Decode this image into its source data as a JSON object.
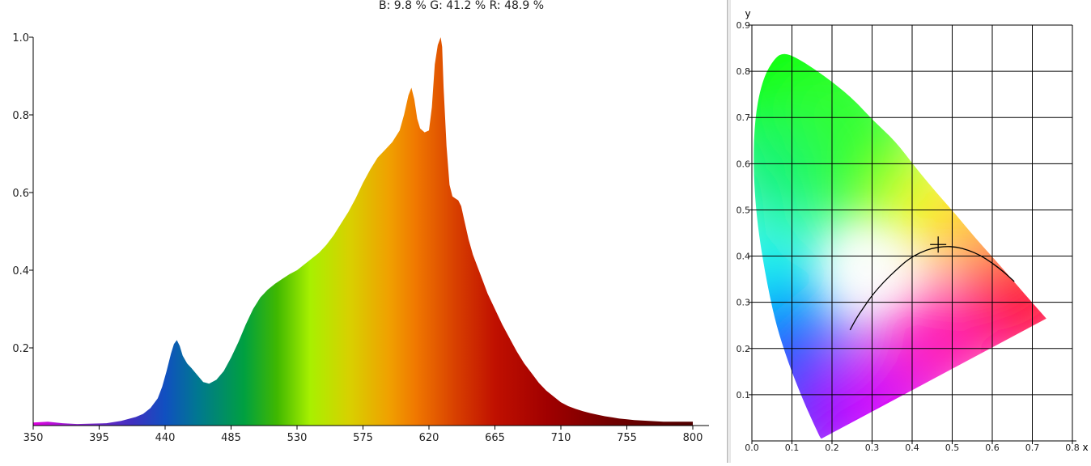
{
  "chart_data": [
    {
      "type": "area",
      "title": "B: 9.8 %  G: 41.2 %  R: 48.9 %",
      "xlabel": "",
      "ylabel": "",
      "xlim": [
        350,
        800
      ],
      "ylim": [
        0,
        1.0
      ],
      "x_ticks": [
        350,
        395,
        440,
        485,
        530,
        575,
        620,
        665,
        710,
        755,
        800
      ],
      "y_ticks": [
        0.2,
        0.4,
        0.6,
        0.8,
        1.0
      ],
      "y_tick_labels": [
        "0.2",
        "0.4",
        "0.6",
        "0.8",
        "1.0"
      ],
      "grid": false,
      "fill": "spectral-gradient",
      "series": [
        {
          "x": [
            350,
            360,
            370,
            380,
            390,
            400,
            410,
            420,
            425,
            430,
            435,
            438,
            441,
            444,
            446,
            448,
            450,
            452,
            455,
            458,
            462,
            466,
            470,
            475,
            480,
            485,
            490,
            495,
            500,
            505,
            510,
            515,
            520,
            525,
            530,
            535,
            540,
            545,
            550,
            555,
            560,
            565,
            570,
            575,
            580,
            585,
            590,
            595,
            600,
            603,
            606,
            608,
            610,
            612,
            614,
            617,
            620,
            622,
            624,
            626,
            628,
            629,
            630,
            632,
            634,
            636,
            638,
            640,
            642,
            644,
            647,
            650,
            655,
            660,
            665,
            670,
            675,
            680,
            685,
            690,
            695,
            700,
            705,
            710,
            715,
            720,
            725,
            730,
            735,
            740,
            745,
            750,
            755,
            760,
            770,
            780,
            790,
            800
          ],
          "y": [
            0.008,
            0.01,
            0.006,
            0.004,
            0.005,
            0.006,
            0.012,
            0.022,
            0.03,
            0.045,
            0.07,
            0.1,
            0.14,
            0.185,
            0.21,
            0.22,
            0.205,
            0.18,
            0.16,
            0.148,
            0.13,
            0.112,
            0.108,
            0.118,
            0.14,
            0.175,
            0.215,
            0.26,
            0.3,
            0.33,
            0.35,
            0.365,
            0.378,
            0.39,
            0.4,
            0.415,
            0.43,
            0.445,
            0.465,
            0.49,
            0.52,
            0.55,
            0.585,
            0.625,
            0.66,
            0.69,
            0.71,
            0.73,
            0.76,
            0.8,
            0.85,
            0.87,
            0.84,
            0.79,
            0.765,
            0.755,
            0.76,
            0.82,
            0.93,
            0.98,
            1.0,
            0.975,
            0.87,
            0.72,
            0.62,
            0.59,
            0.585,
            0.58,
            0.565,
            0.53,
            0.48,
            0.44,
            0.39,
            0.34,
            0.3,
            0.26,
            0.225,
            0.19,
            0.16,
            0.135,
            0.11,
            0.09,
            0.075,
            0.06,
            0.05,
            0.043,
            0.037,
            0.032,
            0.028,
            0.024,
            0.021,
            0.018,
            0.016,
            0.014,
            0.012,
            0.01,
            0.01,
            0.01
          ]
        }
      ]
    },
    {
      "type": "scatter",
      "title": "",
      "xlabel": "x",
      "ylabel": "y",
      "xlim": [
        0.0,
        0.8
      ],
      "ylim": [
        0.0,
        0.9
      ],
      "x_ticks": [
        0.0,
        0.1,
        0.2,
        0.3,
        0.4,
        0.5,
        0.6,
        0.7,
        0.8
      ],
      "x_tick_labels": [
        "0.0",
        "0.1",
        "0.2",
        "0.3",
        "0.4",
        "0.5",
        "0.6",
        "0.7",
        "0.8"
      ],
      "y_ticks": [
        0.1,
        0.2,
        0.3,
        0.4,
        0.5,
        0.6,
        0.7,
        0.8,
        0.9
      ],
      "y_tick_labels": [
        "0.1",
        "0.2",
        "0.3",
        "0.4",
        "0.5",
        "0.6",
        "0.7",
        "0.8",
        "0.9"
      ],
      "grid": true,
      "spectral_locus": [
        [
          0.174,
          0.005
        ],
        [
          0.172,
          0.005
        ],
        [
          0.165,
          0.017
        ],
        [
          0.15,
          0.045
        ],
        [
          0.124,
          0.096
        ],
        [
          0.091,
          0.169
        ],
        [
          0.058,
          0.258
        ],
        [
          0.032,
          0.367
        ],
        [
          0.012,
          0.479
        ],
        [
          0.003,
          0.597
        ],
        [
          0.008,
          0.706
        ],
        [
          0.028,
          0.786
        ],
        [
          0.058,
          0.83
        ],
        [
          0.08,
          0.84
        ],
        [
          0.11,
          0.83
        ],
        [
          0.154,
          0.806
        ],
        [
          0.204,
          0.775
        ],
        [
          0.254,
          0.739
        ],
        [
          0.303,
          0.693
        ],
        [
          0.357,
          0.65
        ],
        [
          0.411,
          0.589
        ],
        [
          0.46,
          0.538
        ],
        [
          0.51,
          0.489
        ],
        [
          0.557,
          0.44
        ],
        [
          0.608,
          0.391
        ],
        [
          0.652,
          0.347
        ],
        [
          0.692,
          0.307
        ],
        [
          0.735,
          0.265
        ]
      ],
      "planckian_locus": [
        [
          0.245,
          0.24
        ],
        [
          0.26,
          0.265
        ],
        [
          0.28,
          0.29
        ],
        [
          0.3,
          0.315
        ],
        [
          0.33,
          0.345
        ],
        [
          0.36,
          0.37
        ],
        [
          0.39,
          0.393
        ],
        [
          0.42,
          0.408
        ],
        [
          0.45,
          0.417
        ],
        [
          0.48,
          0.421
        ],
        [
          0.51,
          0.42
        ],
        [
          0.54,
          0.413
        ],
        [
          0.57,
          0.402
        ],
        [
          0.6,
          0.385
        ],
        [
          0.63,
          0.365
        ],
        [
          0.655,
          0.345
        ]
      ],
      "points": [
        {
          "x": 0.465,
          "y": 0.425,
          "marker": "plus"
        }
      ]
    }
  ]
}
